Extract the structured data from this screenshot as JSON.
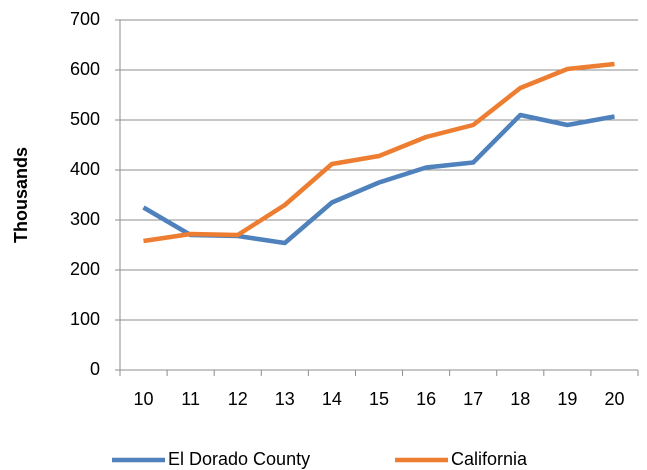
{
  "chart_data": {
    "type": "line",
    "y_label": "Thousands",
    "categories": [
      "10",
      "11",
      "12",
      "13",
      "14",
      "15",
      "16",
      "17",
      "18",
      "19",
      "20"
    ],
    "series": [
      {
        "name": "El Dorado County",
        "color": "#4f81bd",
        "values": [
          325,
          270,
          268,
          254,
          335,
          375,
          405,
          415,
          510,
          490,
          507
        ]
      },
      {
        "name": "California",
        "color": "#ed7d31",
        "values": [
          258,
          272,
          270,
          330,
          412,
          428,
          466,
          490,
          564,
          602,
          612
        ]
      }
    ],
    "ylim": [
      0,
      700
    ],
    "yticks": [
      0,
      100,
      200,
      300,
      400,
      500,
      600,
      700
    ],
    "grid": true,
    "legend": "bottom"
  }
}
